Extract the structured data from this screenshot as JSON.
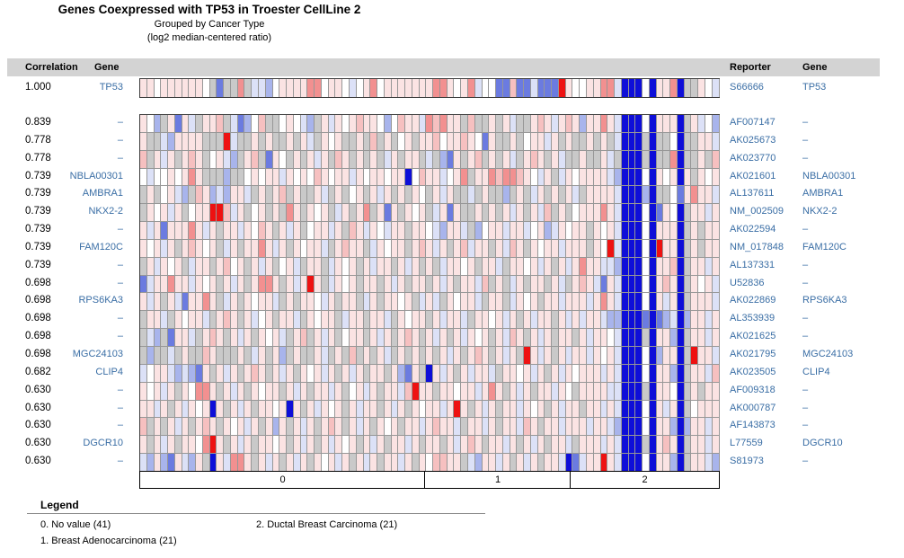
{
  "title": "Genes Coexpressed with TP53 in Troester CellLine 2",
  "subtitle1": "Grouped by Cancer Type",
  "subtitle2": "(log2 median-centered ratio)",
  "columns": {
    "correlation": "Correlation",
    "gene": "Gene",
    "reporter": "Reporter",
    "gene2": "Gene"
  },
  "legend": {
    "heading": "Legend",
    "items": [
      "0. No value (41)",
      "1. Breast Adenocarcinoma (21)",
      "2. Ductal Breast Carcinoma (21)"
    ]
  },
  "chart_data": {
    "type": "heatmap",
    "title": "Genes Coexpressed with TP53 in Troester CellLine 2",
    "grouping": "Cancer Type",
    "value_scale": "log2 median-centered ratio",
    "columns_total": 83,
    "groups": [
      {
        "id": "0",
        "label": "No value",
        "n": 41
      },
      {
        "id": "1",
        "label": "Breast Adenocarcinoma",
        "n": 21
      },
      {
        "id": "2",
        "label": "Ductal Breast Carcinoma",
        "n": 21
      }
    ],
    "palette": {
      "Z": "#0e0ed8",
      "B": "#6b7be0",
      "b": "#a8b4ec",
      "l": "#dce1f7",
      "W": "#ffffff",
      "p": "#fbe3e3",
      "r": "#f6c0c0",
      "R": "#f29090",
      "X": "#ee1111",
      "G": "#c9c9c9"
    },
    "palette_legend": {
      "Z": "strong under-expression",
      "B": "moderate under-expression",
      "b": "mild under-expression",
      "l": "slight under-expression",
      "W": "at median",
      "p": "slight over-expression",
      "r": "mild over-expression",
      "R": "moderate over-expression",
      "X": "strong over-expression",
      "G": "no measurement"
    },
    "target_row": {
      "correlation": "1.000",
      "gene": "TP53",
      "reporter": "S66666",
      "gene2": "TP53",
      "cells": "ppWppppppWGBGGRGllbWppppRRWppWlWpRWpppppppRRpWpRlWWBBrBBlBBBXpWWppRRlZZZWZppRZGGpWl"
    },
    "rows": [
      {
        "correlation": "0.839",
        "gene": "–",
        "reporter": "AF007147",
        "gene2": "–",
        "cells": "pWbGpBplGpprGlBbWrGGWpWlbGplpWprppWbWrpplRrRppGrGGpGplGGprplprpbppRplZZZWZpppZGplWb"
      },
      {
        "correlation": "0.778",
        "gene": "–",
        "reporter": "AK025673",
        "gene2": "–",
        "cells": "pGGlbppppGGGXlGGpGpGGpGplGpWpGGpGrGpGWpGpprWpprpWBpGGpGWpplpGpGGpGpGlZZZGZGGWZGGppl"
      },
      {
        "correlation": "0.778",
        "gene": "–",
        "reporter": "AK023770",
        "gene2": "–",
        "cells": "rGplpGprpGWplbGprGBpWGpGplpGrpGpGpGlpGppGlGbBpGprGpGplGprpGplGGpGGplGZZZGZGGRZGGpGr"
      },
      {
        "correlation": "0.739",
        "gene": "NBLA00301",
        "reporter": "AK021601",
        "gene2": "NBLA00301",
        "cells": "WlWWpWpRpGGGbGGWpWpplpWpWrpWpplpWppWppZWrpplWpRGppRrRRrpWlpGlpWpppplbZZZWZpWpZpGpWp"
      },
      {
        "correlation": "0.739",
        "gene": "AMBRA1",
        "reporter": "AL137611",
        "gene2": "AMBRA1",
        "cells": "GpGWplbGrpblbpplGpGprGpGGplGpGWpGplpGpGpWGplpGGlGpGGbGpGlpGpGplGpppplZZZbZGGWBpRppl"
      },
      {
        "correlation": "0.739",
        "gene": "NKX2-2",
        "reporter": "NM_002509",
        "gene2": "NKX2-2",
        "cells": "GpWplpGWppXXrlpGWpGpGRpGpWpGlpGpRGpBpGpWpGlpBpGGpGpGplpGplrGpGWpppRplZZZWZBpWZGpplp"
      },
      {
        "correlation": "0.739",
        "gene": "–",
        "reporter": "AK022594",
        "gene2": "–",
        "cells": "plpBpppRplpGpplpWrpGplpGWpplpGrplpWlppGppWlbpplGbWpplpplWpblpWppGpWplZZZWZpppZGpGpp"
      },
      {
        "correlation": "0.739",
        "gene": "FAM120C",
        "reporter": "NM_017848",
        "gene2": "FAM120C",
        "cells": "pWplpGprpWpGlpGppRplpGpWpplGprppGlpWppGprplpGprlppGplrpGpWpplpppGpWXlZZZWZXppZGpGpp"
      },
      {
        "correlation": "0.739",
        "gene": "–",
        "reporter": "AL137331",
        "gene2": "–",
        "cells": "GplpWpGlppGprWpGplpGWplGppGlpWpGplppGplpGpGlppWpGpplGppWplpGplpRppllbZZZWZpprZGpplp"
      },
      {
        "correlation": "0.698",
        "gene": "–",
        "reporter": "U52836",
        "gene2": "–",
        "cells": "BlppRpplpWpGplpGpRRpGplpXpGlpWpGppGplpGppGplpGpplrGpGlpGppGplGprplBplZZZWZprpZGpWpl"
      },
      {
        "correlation": "0.698",
        "gene": "RPS6KA3",
        "reporter": "AK022869",
        "gene2": "RPS6KA3",
        "cells": "plpGplBppRpGlpGpWpplGpGppWlpGppGlpGppWpGlplGpWpplGppGlpWpGpplppplpRplZZZWZplpZGpppl"
      },
      {
        "correlation": "0.698",
        "gene": "–",
        "reporter": "AL353939",
        "gene2": "–",
        "cells": "GpplGpWpplGprpGplWpGpplGpWppGlppGpplGpWppGplpplGppWplpGplppGplplpplbbZZZBZBblZbpplp"
      },
      {
        "correlation": "0.698",
        "gene": "–",
        "reporter": "AK021625",
        "gene2": "–",
        "cells": "GlbGBpplGprpGplpGpWplGprGplpGWppGplpGprpGplpGplpWpGplrpGplpGppGplppWlZZZGZppbZGpplp"
      },
      {
        "correlation": "0.698",
        "gene": "MGC24103",
        "reporter": "AK021795",
        "gene2": "MGC24103",
        "cells": "GbGGlGpGGrpGGGpGlpGpbGpGGplGpGrGpGplGpGpGpGplpGprpGplpGXplpGplpplpWplZZZWZbppZGXppl"
      },
      {
        "correlation": "0.682",
        "gene": "CLIP4",
        "reporter": "AK023505",
        "gene2": "CLIP4",
        "cells": "lWpplblbBpGplpGprpGplpGpWplpGplpGppGpbBpGZplpGplpplGppWplpGplpWppplplZZZWZppbZGpplr"
      },
      {
        "correlation": "0.630",
        "gene": "–",
        "reporter": "AF009318",
        "gene2": "–",
        "cells": "pWplpGpWRRpGplpGpWppGplpGpplpGWplpGpplrXppGppWpplpRpGplpGpplpWGppppllZZZGZppWZGpGpp"
      },
      {
        "correlation": "0.630",
        "gene": "–",
        "reporter": "AK000787",
        "gene2": "–",
        "cells": "pplpGplpWpZpGplpGppWpZpGplpWpGplppGplpGpWpplpXpGplpGpplpWpGplppGpplplZZZWZplpZGWppp"
      },
      {
        "correlation": "0.630",
        "gene": "–",
        "reporter": "AF143873",
        "gene2": "–",
        "cells": "rGpGplpGprpGpWplpGpbpGplpGprpGplpGpWpGpplprpplGpplpGpplrpGpplppplpplbZZZWZppbZbpplp"
      },
      {
        "correlation": "0.630",
        "gene": "DGCR10",
        "reporter": "L77559",
        "gene2": "DGCR10",
        "cells": "pGplpGppWRXpGplpGppWpGplpGplpWpGplpGpplpGppGplprpGpplpGplpGpplGppplplZZZGZprpZGpplp"
      },
      {
        "correlation": "0.630",
        "gene": "–",
        "reporter": "S81973",
        "gene2": "–",
        "cells": "lbpbBplbpGZplRRpGplpGplpGpWplpGplpGpplpGpWrrppGlbpplpGplpGpplZBlppXplZZZWZppbZGpplb"
      }
    ]
  }
}
